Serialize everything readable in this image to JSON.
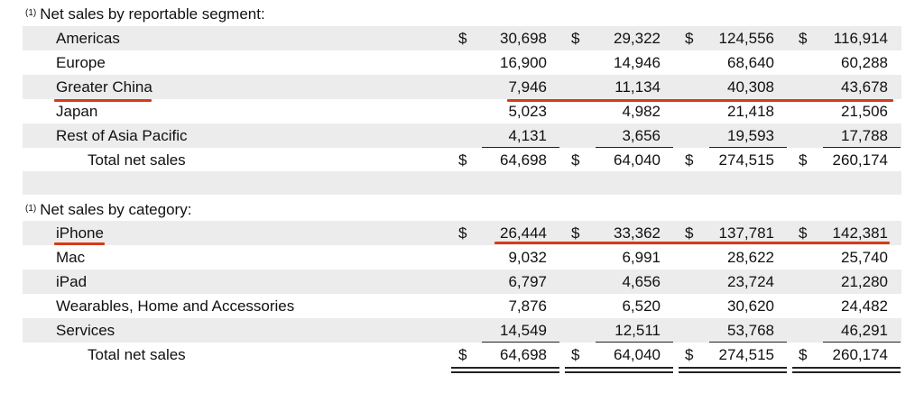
{
  "footnote_marker": "(1)",
  "segment": {
    "title": "Net sales by reportable segment:",
    "rows": [
      {
        "label": "Americas",
        "c1": "30,698",
        "c2": "29,322",
        "c3": "124,556",
        "c4": "116,914",
        "dollar": true
      },
      {
        "label": "Europe",
        "c1": "16,900",
        "c2": "14,946",
        "c3": "68,640",
        "c4": "60,288",
        "dollar": false
      },
      {
        "label": "Greater China",
        "c1": "7,946",
        "c2": "11,134",
        "c3": "40,308",
        "c4": "43,678",
        "dollar": false
      },
      {
        "label": "Japan",
        "c1": "5,023",
        "c2": "4,982",
        "c3": "21,418",
        "c4": "21,506",
        "dollar": false
      },
      {
        "label": "Rest of Asia Pacific",
        "c1": "4,131",
        "c2": "3,656",
        "c3": "19,593",
        "c4": "17,788",
        "dollar": false
      }
    ],
    "total": {
      "label": "Total net sales",
      "c1": "64,698",
      "c2": "64,040",
      "c3": "274,515",
      "c4": "260,174"
    }
  },
  "category": {
    "title": "Net sales by category:",
    "rows": [
      {
        "label": "iPhone",
        "c1": "26,444",
        "c2": "33,362",
        "c3": "137,781",
        "c4": "142,381",
        "dollar": true
      },
      {
        "label": "Mac",
        "c1": "9,032",
        "c2": "6,991",
        "c3": "28,622",
        "c4": "25,740",
        "dollar": false
      },
      {
        "label": "iPad",
        "c1": "6,797",
        "c2": "4,656",
        "c3": "23,724",
        "c4": "21,280",
        "dollar": false
      },
      {
        "label": "Wearables, Home and Accessories",
        "c1": "7,876",
        "c2": "6,520",
        "c3": "30,620",
        "c4": "24,482",
        "dollar": false
      },
      {
        "label": "Services",
        "c1": "14,549",
        "c2": "12,511",
        "c3": "53,768",
        "c4": "46,291",
        "dollar": false
      }
    ],
    "total": {
      "label": "Total net sales",
      "c1": "64,698",
      "c2": "64,040",
      "c3": "274,515",
      "c4": "260,174"
    }
  },
  "currency_symbol": "$",
  "highlight_color": "#d63a1a"
}
